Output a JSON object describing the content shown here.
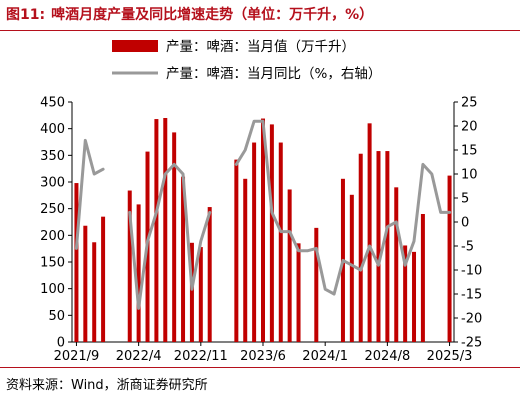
{
  "figure": {
    "number": "图11:",
    "title": "啤酒月度产量及同比增速走势（单位：万千升，%）",
    "source": "资料来源：Wind，浙商证券研究所"
  },
  "colors": {
    "bar": "#c00000",
    "line": "#999999",
    "title": "#b5101c"
  },
  "chart_data": {
    "type": "bar",
    "title": "啤酒月度产量及同比增速走势（单位：万千升，%）",
    "x": [
      "2021/9",
      "2021/10",
      "2021/11",
      "2021/12",
      "2022/1",
      "2022/2",
      "2022/3",
      "2022/4",
      "2022/5",
      "2022/6",
      "2022/7",
      "2022/8",
      "2022/9",
      "2022/10",
      "2022/11",
      "2022/12",
      "2023/1",
      "2023/2",
      "2023/3",
      "2023/4",
      "2023/5",
      "2023/6",
      "2023/7",
      "2023/8",
      "2023/9",
      "2023/10",
      "2023/11",
      "2023/12",
      "2024/1",
      "2024/2",
      "2024/3",
      "2024/4",
      "2024/5",
      "2024/6",
      "2024/7",
      "2024/8",
      "2024/9",
      "2024/10",
      "2024/11",
      "2024/12",
      "2025/1",
      "2025/2",
      "2025/3"
    ],
    "x_ticks": [
      "2021/9",
      "2022/4",
      "2022/11",
      "2023/6",
      "2024/1",
      "2024/8",
      "2025/3"
    ],
    "grid": false,
    "legend_position": "top-right",
    "series": [
      {
        "name": "产量：啤酒：当月值（万千升）",
        "type": "bar",
        "axis": "left",
        "values": [
          298,
          218,
          187,
          235,
          null,
          null,
          284,
          258,
          357,
          418,
          420,
          393,
          310,
          186,
          178,
          253,
          null,
          null,
          342,
          306,
          374,
          419,
          408,
          374,
          286,
          185,
          null,
          214,
          null,
          null,
          306,
          276,
          353,
          410,
          358,
          358,
          290,
          181,
          169,
          240,
          null,
          null,
          312
        ]
      },
      {
        "name": "产量：啤酒：当月同比（%，右轴）",
        "type": "line",
        "axis": "right",
        "values": [
          -5.5,
          17,
          10,
          11,
          null,
          null,
          2,
          -18,
          -4,
          2,
          10,
          12,
          10,
          -14,
          -4,
          2,
          null,
          null,
          12,
          15,
          21,
          21,
          2,
          -2,
          -2,
          -6,
          -6,
          -5.5,
          -14,
          -15,
          -8,
          -9,
          -10,
          -5,
          -9,
          -1,
          0,
          -9,
          -4,
          12,
          10,
          2,
          2
        ]
      }
    ],
    "y_left": {
      "ylim": [
        0,
        450
      ],
      "ticks": [
        0,
        50,
        100,
        150,
        200,
        250,
        300,
        350,
        400,
        450
      ]
    },
    "y_right": {
      "ylim": [
        -25,
        25
      ],
      "ticks": [
        -25,
        -20,
        -15,
        -10,
        -5,
        0,
        5,
        10,
        15,
        20,
        25
      ]
    }
  }
}
